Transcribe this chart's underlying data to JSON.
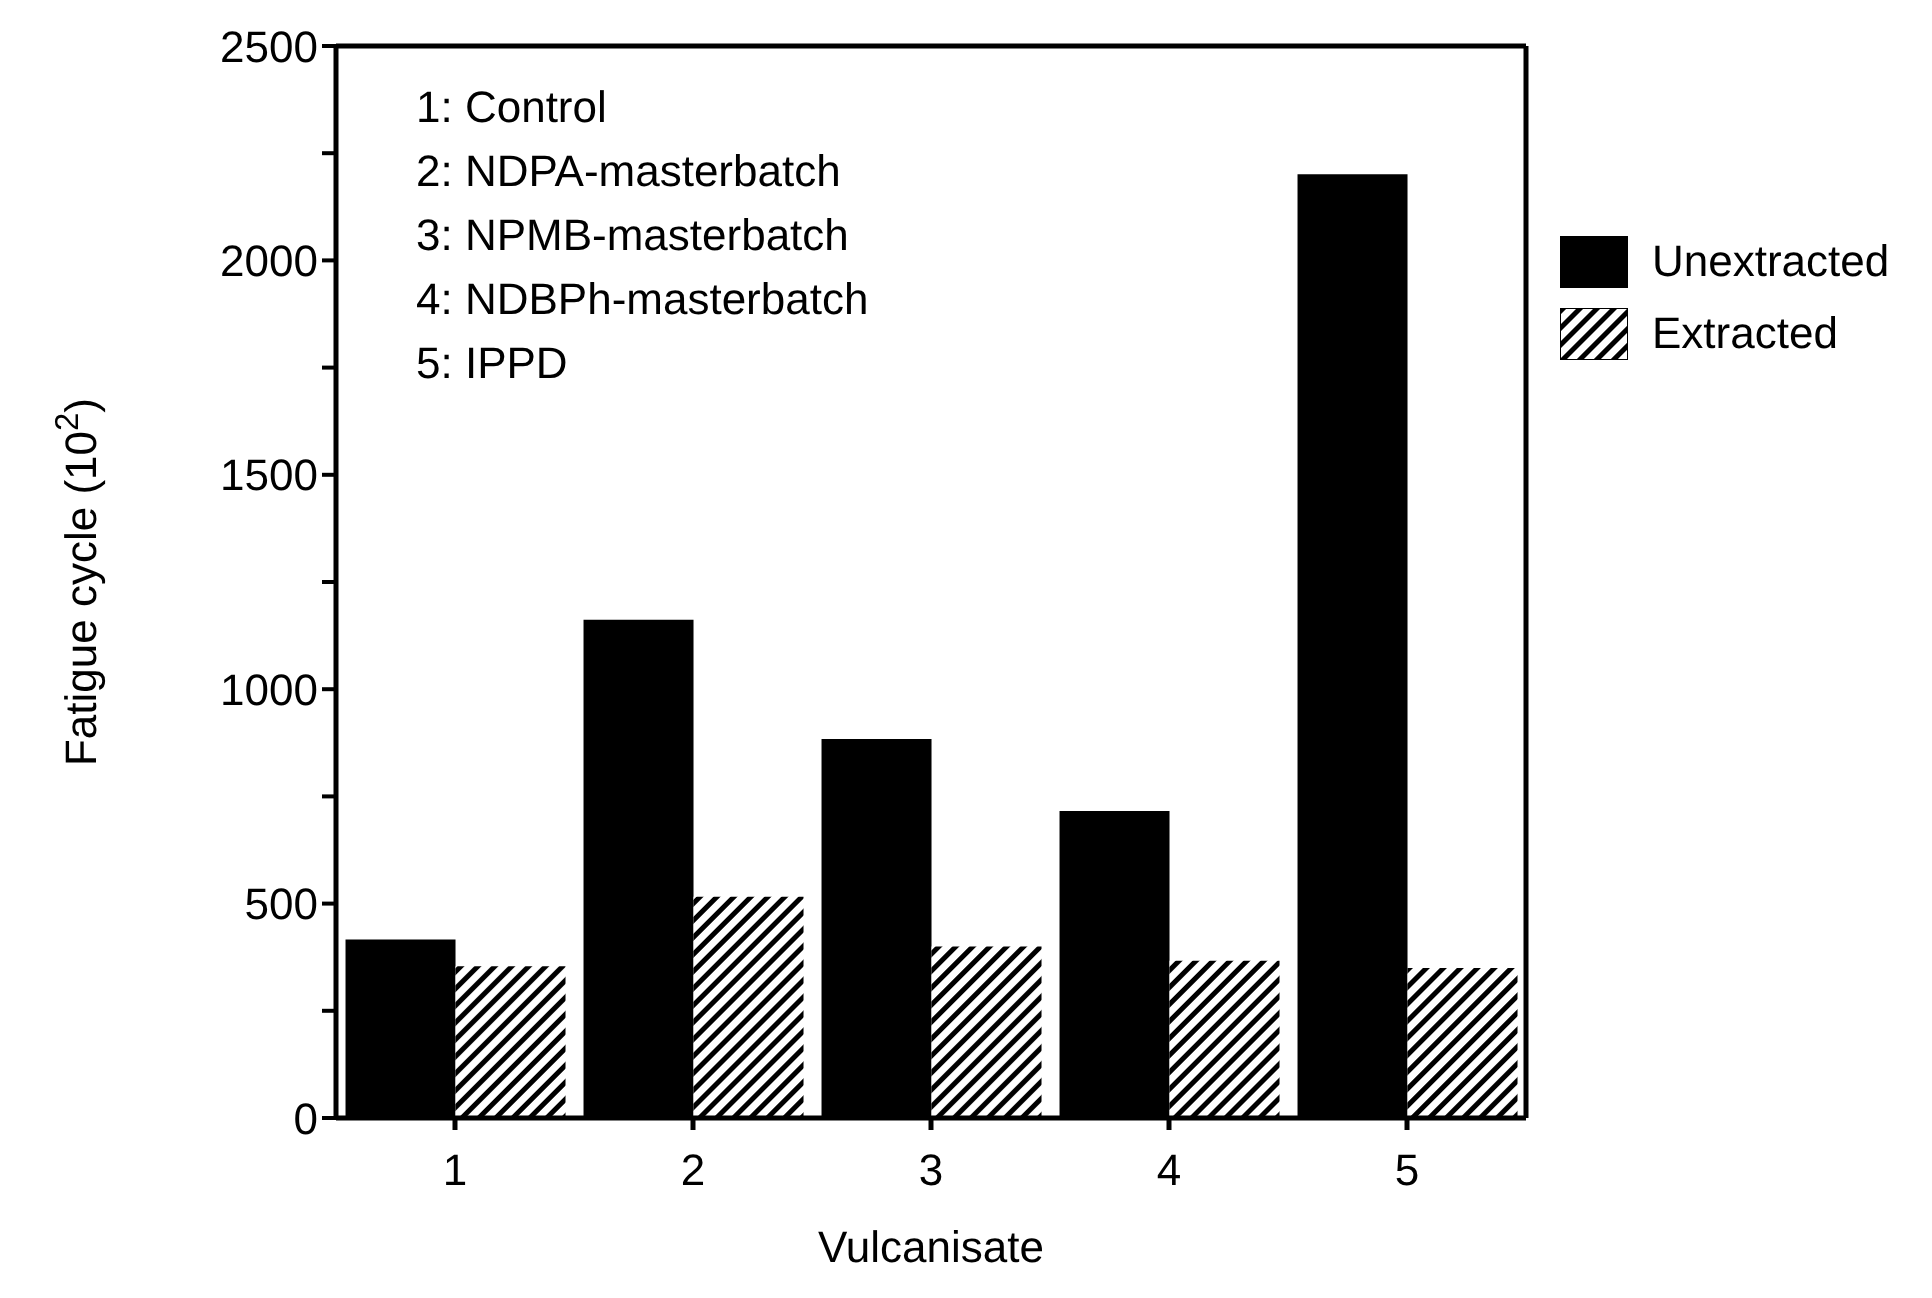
{
  "chart_data": {
    "type": "bar",
    "xlabel": "Vulcanisate",
    "ylabel": "Fatigue cycle (10$^{2}$)",
    "categories": [
      "1",
      "2",
      "3",
      "4",
      "5"
    ],
    "series": [
      {
        "name": "Unextracted",
        "color": "#000000",
        "values": [
          416,
          1162,
          884,
          716,
          2201
        ]
      },
      {
        "name": "Extracted",
        "color": "#000000",
        "values": [
          354,
          516,
          400,
          367,
          350
        ]
      }
    ],
    "ylim": [
      0,
      2500
    ],
    "yticks": [
      0,
      {
        "value": 250,
        "label": null
      },
      500,
      {
        "value": 750,
        "label": null
      },
      1000,
      {
        "value": 1250,
        "label": null
      },
      1500,
      {
        "value": 1750,
        "label": null
      },
      2000,
      {
        "value": 2250,
        "label": null
      },
      2500
    ],
    "legend": "right",
    "annotations": [
      "1: Control",
      "2: NDPA-masterbatch",
      "3: NPMB-masterbatch",
      "4: NDBPh-masterbatch",
      "5: IPPD"
    ]
  }
}
